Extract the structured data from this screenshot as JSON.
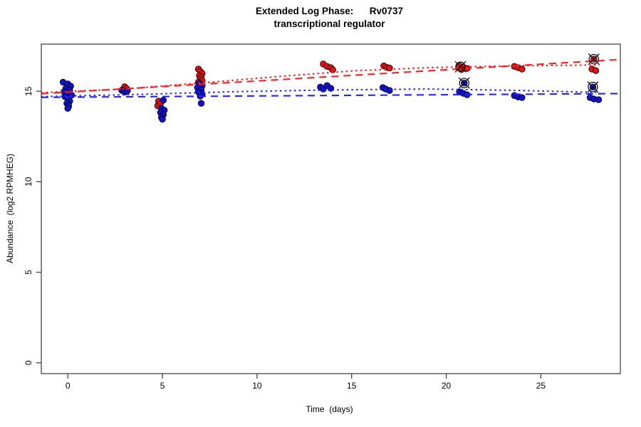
{
  "title": {
    "line1": "Extended Log Phase:      Rv0737",
    "line2": "transcriptional regulator"
  },
  "axes": {
    "x_label": "Time  (days)",
    "y_label": "Abundance  (log2 RPMHEG)"
  },
  "chart_data": {
    "type": "scatter",
    "title": "Extended Log Phase: Rv0737 transcriptional regulator",
    "xlabel": "Time (days)",
    "ylabel": "Abundance (log2 RPMHEG)",
    "xlim": [
      -1.4,
      29.2
    ],
    "ylim": [
      -0.6,
      17.6
    ],
    "x_ticks": [
      0,
      5,
      10,
      15,
      20,
      25
    ],
    "y_ticks": [
      0,
      5,
      10,
      15
    ],
    "grid": false,
    "legend": "none",
    "colors": {
      "red": "#e31212",
      "red_line": "#ff1a1a",
      "blue": "#1111cc",
      "blue_line": "#2222ff",
      "flag": "#111111",
      "box": "#444444"
    },
    "series": [
      {
        "name": "red-points",
        "type": "scatter",
        "color": "red",
        "points": [
          [
            3.0,
            15.25
          ],
          [
            3.1,
            15.15
          ],
          [
            4.8,
            14.45
          ],
          [
            4.75,
            14.2
          ],
          [
            4.9,
            14.33
          ],
          [
            6.9,
            16.22
          ],
          [
            7.0,
            16.1
          ],
          [
            7.1,
            15.98
          ],
          [
            6.95,
            15.86
          ],
          [
            7.05,
            15.78
          ],
          [
            7.0,
            15.66
          ],
          [
            7.1,
            15.58
          ],
          [
            6.9,
            15.5
          ],
          [
            13.5,
            16.5
          ],
          [
            13.7,
            16.37
          ],
          [
            13.9,
            16.3
          ],
          [
            14.0,
            16.18
          ],
          [
            16.7,
            16.4
          ],
          [
            16.85,
            16.32
          ],
          [
            17.0,
            16.28
          ],
          [
            20.7,
            16.4
          ],
          [
            20.9,
            16.32
          ],
          [
            21.1,
            16.26
          ],
          [
            20.8,
            16.2
          ],
          [
            23.6,
            16.37
          ],
          [
            23.8,
            16.3
          ],
          [
            24.0,
            16.22
          ],
          [
            27.7,
            16.22
          ],
          [
            27.9,
            16.14
          ],
          [
            27.8,
            16.77
          ]
        ]
      },
      {
        "name": "blue-points",
        "type": "scatter",
        "color": "blue",
        "points": [
          [
            -0.25,
            15.5
          ],
          [
            0.0,
            15.4
          ],
          [
            0.15,
            15.28
          ],
          [
            -0.1,
            15.16
          ],
          [
            0.1,
            15.05
          ],
          [
            -0.2,
            14.97
          ],
          [
            0.05,
            14.9
          ],
          [
            0.2,
            14.78
          ],
          [
            -0.15,
            14.7
          ],
          [
            0.0,
            14.58
          ],
          [
            0.1,
            14.45
          ],
          [
            -0.05,
            14.33
          ],
          [
            0.05,
            14.18
          ],
          [
            0.0,
            14.05
          ],
          [
            2.85,
            15.05
          ],
          [
            3.0,
            14.95
          ],
          [
            3.15,
            15.02
          ],
          [
            5.05,
            14.5
          ],
          [
            4.95,
            14.05
          ],
          [
            5.1,
            13.95
          ],
          [
            4.9,
            13.82
          ],
          [
            5.05,
            13.7
          ],
          [
            4.95,
            13.55
          ],
          [
            5.0,
            13.45
          ],
          [
            6.95,
            15.43
          ],
          [
            7.1,
            15.31
          ],
          [
            6.85,
            15.2
          ],
          [
            7.05,
            15.08
          ],
          [
            6.9,
            14.96
          ],
          [
            7.1,
            14.84
          ],
          [
            7.0,
            14.73
          ],
          [
            7.05,
            14.33
          ],
          [
            13.35,
            15.23
          ],
          [
            13.5,
            15.12
          ],
          [
            13.7,
            15.31
          ],
          [
            13.9,
            15.16
          ],
          [
            16.65,
            15.2
          ],
          [
            16.8,
            15.12
          ],
          [
            17.0,
            15.04
          ],
          [
            20.7,
            14.96
          ],
          [
            20.9,
            14.88
          ],
          [
            21.1,
            14.8
          ],
          [
            20.95,
            15.45
          ],
          [
            23.6,
            14.76
          ],
          [
            23.8,
            14.68
          ],
          [
            24.0,
            14.65
          ],
          [
            27.6,
            14.65
          ],
          [
            27.8,
            14.57
          ],
          [
            28.05,
            14.53
          ],
          [
            27.75,
            15.23
          ]
        ]
      },
      {
        "name": "red-linear-fit",
        "type": "line",
        "style": "dashed",
        "color": "red_line",
        "points": [
          [
            -1.4,
            14.86
          ],
          [
            29.2,
            16.75
          ]
        ]
      },
      {
        "name": "blue-linear-fit",
        "type": "line",
        "style": "dashed",
        "color": "blue_line",
        "points": [
          [
            -1.4,
            14.66
          ],
          [
            29.2,
            14.87
          ]
        ]
      },
      {
        "name": "red-curve-fit",
        "type": "line",
        "style": "dotted",
        "color": "red_line",
        "points": [
          [
            -1.4,
            14.92
          ],
          [
            3,
            15.12
          ],
          [
            7,
            15.45
          ],
          [
            11,
            15.8
          ],
          [
            15,
            16.12
          ],
          [
            19,
            16.3
          ],
          [
            23.5,
            16.4
          ],
          [
            28.1,
            16.45
          ]
        ]
      },
      {
        "name": "blue-curve-fit",
        "type": "line",
        "style": "dotted",
        "color": "blue_line",
        "points": [
          [
            -1.4,
            14.7
          ],
          [
            4,
            14.83
          ],
          [
            9,
            14.98
          ],
          [
            14,
            15.07
          ],
          [
            19,
            15.12
          ],
          [
            23.5,
            15.05
          ],
          [
            28.1,
            14.93
          ]
        ]
      },
      {
        "name": "flagged-outliers",
        "type": "scatter",
        "marker": "circle-x",
        "color": "flag",
        "points": [
          [
            20.75,
            16.35
          ],
          [
            20.95,
            15.45
          ],
          [
            27.8,
            16.77
          ],
          [
            27.75,
            15.23
          ]
        ]
      }
    ]
  }
}
